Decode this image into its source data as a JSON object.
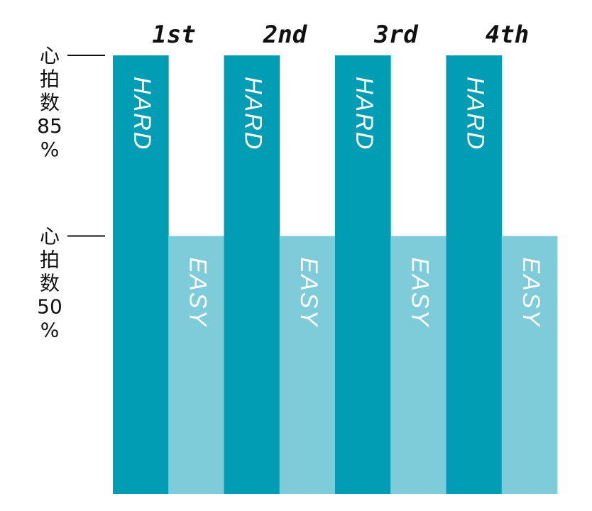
{
  "chart_data": {
    "type": "bar",
    "categories": [
      "1st",
      "2nd",
      "3rd",
      "4th"
    ],
    "series": [
      {
        "name": "HARD",
        "values": [
          85,
          85,
          85,
          85
        ],
        "color": "#009db5"
      },
      {
        "name": "EASY",
        "values": [
          50,
          50,
          50,
          50
        ],
        "color": "#7ecbd9"
      }
    ],
    "ylabel": "",
    "ylim": [
      0,
      85
    ],
    "reference_levels": [
      {
        "value": 85,
        "label": [
          "心",
          "拍",
          "数",
          "85",
          "%"
        ]
      },
      {
        "value": 50,
        "label": [
          "心",
          "拍",
          "数",
          "50",
          "%"
        ]
      }
    ],
    "grid": false,
    "legend": "none"
  }
}
